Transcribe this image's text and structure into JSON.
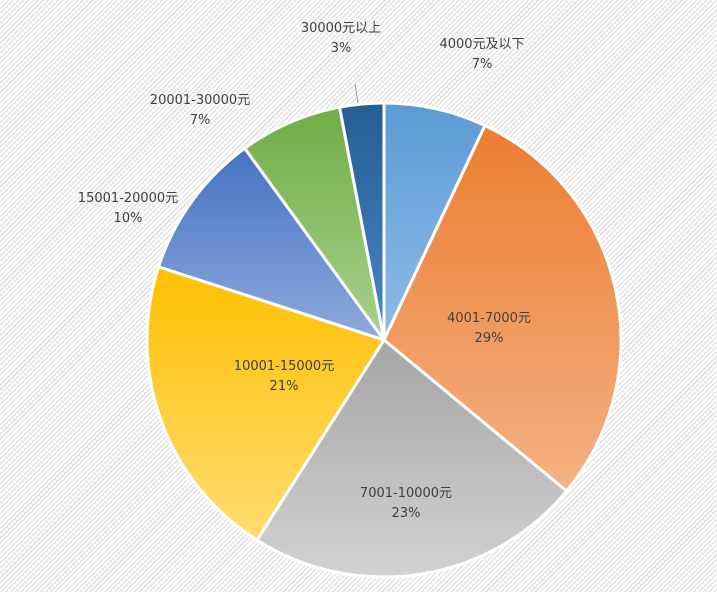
{
  "chart_data": {
    "type": "pie",
    "start_angle": "12 o'clock",
    "direction": "clockwise",
    "slices": [
      {
        "label": "4000元及以下",
        "value": 7,
        "value_label": "7%",
        "color": "#5b9bd5",
        "color_light": "#8fbbe6"
      },
      {
        "label": "4001-7000元",
        "value": 29,
        "value_label": "29%",
        "color": "#ed7d31",
        "color_light": "#f4b183"
      },
      {
        "label": "7001-10000元",
        "value": 23,
        "value_label": "23%",
        "color": "#a5a5a5",
        "color_light": "#d2d2d2"
      },
      {
        "label": "10001-15000元",
        "value": 21,
        "value_label": "21%",
        "color": "#ffc000",
        "color_light": "#ffdc70"
      },
      {
        "label": "15001-20000元",
        "value": 10,
        "value_label": "10%",
        "color": "#4472c4",
        "color_light": "#8faadc"
      },
      {
        "label": "20001-30000元",
        "value": 7,
        "value_label": "7%",
        "color": "#70ad47",
        "color_light": "#a9d18e"
      },
      {
        "label": "30000元以上",
        "value": 3,
        "value_label": "3%",
        "color": "#255e91",
        "color_light": "#4a86c8"
      }
    ]
  }
}
